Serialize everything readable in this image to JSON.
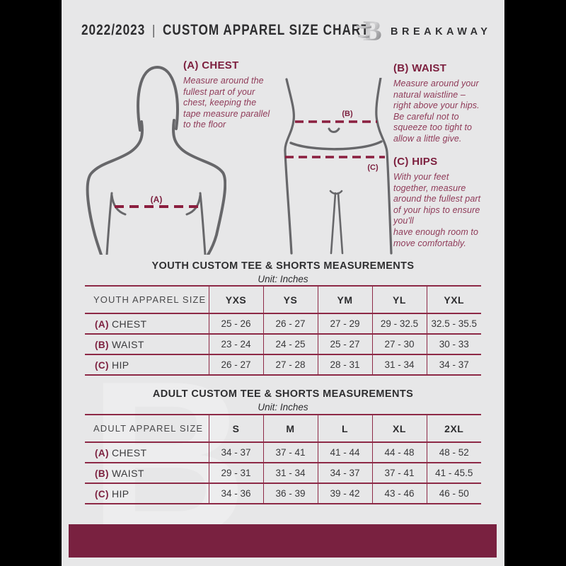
{
  "header": {
    "year": "2022/2023",
    "divider": "|",
    "title": "CUSTOM APPAREL SIZE CHART",
    "brand": "BREAKAWAY"
  },
  "measure_guide": {
    "chest": {
      "heading": "(A) CHEST",
      "marker": "(A)",
      "description": "Measure around the\nfullest part of your\nchest, keeping the\ntape measure parallel\nto the floor"
    },
    "waist": {
      "heading": "(B) WAIST",
      "marker": "(B)",
      "description": "Measure around your\nnatural waistline –\nright above your hips.\nBe careful not to\nsqueeze too tight to\nallow a little give."
    },
    "hips": {
      "heading": "(C) HIPS",
      "marker": "(C)",
      "description": "With your feet\ntogether, measure\naround the fullest part\nof your hips to ensure\nyou'll\nhave enough room to\nmove comfortably."
    }
  },
  "youth_table": {
    "title": "YOUTH CUSTOM TEE & SHORTS MEASUREMENTS",
    "unit": "Unit: Inches",
    "header_label": "YOUTH APPAREL SIZE",
    "sizes": [
      "YXS",
      "YS",
      "YM",
      "YL",
      "YXL"
    ],
    "rows": [
      {
        "key": "(A)",
        "label": "CHEST",
        "values": [
          "25 - 26",
          "26 - 27",
          "27 - 29",
          "29 - 32.5",
          "32.5 - 35.5"
        ]
      },
      {
        "key": "(B)",
        "label": "WAIST",
        "values": [
          "23 - 24",
          "24 - 25",
          "25 - 27",
          "27 - 30",
          "30 - 33"
        ]
      },
      {
        "key": "(C)",
        "label": "HIP",
        "values": [
          "26 - 27",
          "27 - 28",
          "28 - 31",
          "31 - 34",
          "34 - 37"
        ]
      }
    ]
  },
  "adult_table": {
    "title": "ADULT CUSTOM TEE & SHORTS MEASUREMENTS",
    "unit": "Unit: Inches",
    "header_label": "ADULT APPAREL SIZE",
    "sizes": [
      "S",
      "M",
      "L",
      "XL",
      "2XL"
    ],
    "rows": [
      {
        "key": "(A)",
        "label": "CHEST",
        "values": [
          "34 - 37",
          "37 - 41",
          "41 - 44",
          "44 - 48",
          "48 - 52"
        ]
      },
      {
        "key": "(B)",
        "label": "WAIST",
        "values": [
          "29 - 31",
          "31 - 34",
          "34 - 37",
          "37 - 41",
          "41 - 45.5"
        ]
      },
      {
        "key": "(C)",
        "label": "HIP",
        "values": [
          "34 - 36",
          "36 - 39",
          "39 - 42",
          "43 - 46",
          "46 - 50"
        ]
      }
    ]
  },
  "watermark": "B",
  "colors": {
    "frame": "#000000",
    "flyer_background": "#e7e7e8",
    "maroon_bar": "#792140",
    "table_line": "#8d2946",
    "dash_line": "#8b1f3f",
    "heading_maroon": "#7c1f3e",
    "description_text": "#8f3a58",
    "body_outline": "#67676a",
    "ink": "#2e2e30"
  }
}
